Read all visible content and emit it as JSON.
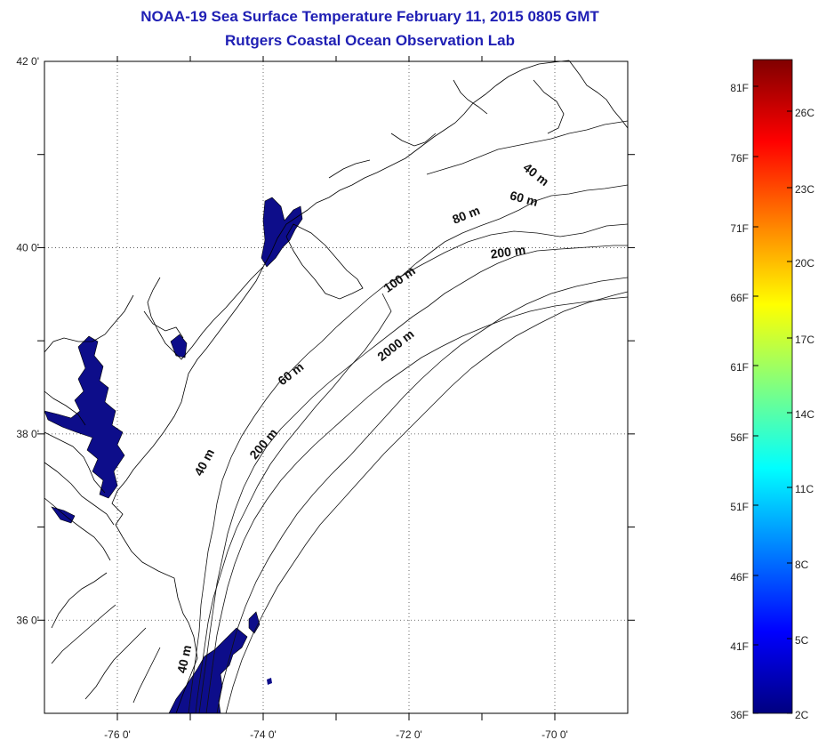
{
  "header": {
    "title": "NOAA-19 Sea Surface Temperature February 11, 2015 0805 GMT",
    "subtitle": "Rutgers Coastal Ocean Observation Lab"
  },
  "map": {
    "lon_range": [
      -77,
      -69
    ],
    "lat_range": [
      35,
      42
    ],
    "lon_tick_labels": [
      {
        "lon": -76,
        "text": "-76 0'"
      },
      {
        "lon": -74,
        "text": "-74 0'"
      },
      {
        "lon": -72,
        "text": "-72 0'"
      },
      {
        "lon": -70,
        "text": "-70 0'"
      }
    ],
    "lat_tick_labels": [
      {
        "lat": 42,
        "text": "42 0'"
      },
      {
        "lat": 40,
        "text": "40 0'"
      },
      {
        "lat": 38,
        "text": "38 0'"
      },
      {
        "lat": 36,
        "text": "36 0'"
      }
    ],
    "gridlines": "dotted",
    "contour_labels": [
      "40 m",
      "60 m",
      "80 m",
      "200 m",
      "100 m",
      "2000 m",
      "60 m",
      "200 m",
      "40 m",
      "40 m"
    ],
    "data_color": "#0d0d8a"
  },
  "colorbar": {
    "fahrenheit_labels": [
      "81F",
      "76F",
      "71F",
      "66F",
      "61F",
      "56F",
      "51F",
      "46F",
      "41F",
      "36F"
    ],
    "celsius_labels": [
      "26C",
      "23C",
      "20C",
      "17C",
      "14C",
      "11C",
      "8C",
      "5C",
      "2C"
    ],
    "colors_bottom_to_top": [
      "#000080",
      "#0000ff",
      "#0080ff",
      "#00ffff",
      "#80ff80",
      "#ffff00",
      "#ff8000",
      "#ff0000",
      "#800000"
    ]
  }
}
